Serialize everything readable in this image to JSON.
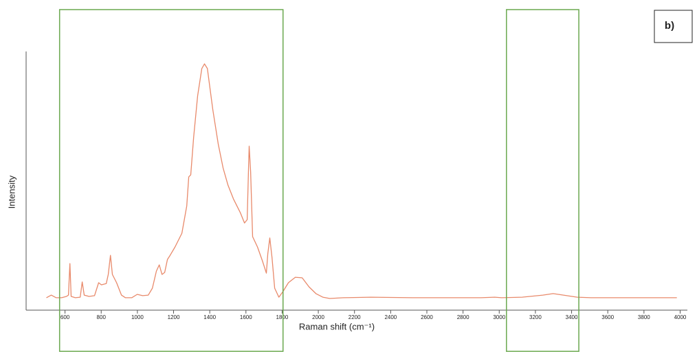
{
  "chart_data": {
    "type": "line",
    "annotation": "b)",
    "xlabel": "Raman shift (cm⁻¹)",
    "ylabel": "Intensity",
    "xlim": [
      385,
      4040
    ],
    "xticks": [
      600,
      800,
      1000,
      1200,
      1400,
      1600,
      1800,
      2000,
      2200,
      2400,
      2600,
      2800,
      3000,
      3200,
      3400,
      3600,
      3800,
      4000
    ],
    "ylim": [
      0,
      100
    ],
    "highlight_ranges": [
      [
        570,
        1805
      ],
      [
        3040,
        3440
      ]
    ],
    "highlight_color": "#6aa84f",
    "series": [
      {
        "color": "#e8896a",
        "x": [
          497,
          524,
          551,
          581,
          608,
          619,
          627,
          634,
          657,
          684,
          695,
          706,
          733,
          763,
          786,
          801,
          828,
          839,
          851,
          862,
          885,
          912,
          934,
          969,
          999,
          1029,
          1060,
          1083,
          1105,
          1121,
          1136,
          1151,
          1166,
          1181,
          1208,
          1246,
          1273,
          1284,
          1295,
          1311,
          1333,
          1356,
          1371,
          1387,
          1417,
          1447,
          1474,
          1501,
          1531,
          1569,
          1592,
          1607,
          1615,
          1618,
          1626,
          1637,
          1664,
          1691,
          1713,
          1721,
          1732,
          1744,
          1759,
          1782,
          1805,
          1835,
          1873,
          1911,
          1949,
          1987,
          2025,
          2063,
          2139,
          2291,
          2519,
          2899,
          2975,
          3013,
          3127,
          3241,
          3298,
          3355,
          3431,
          3507,
          3982
        ],
        "values": [
          4.8,
          5.8,
          4.8,
          4.8,
          5.3,
          5.8,
          18.0,
          5.3,
          4.8,
          5.0,
          10.9,
          5.8,
          5.3,
          5.6,
          10.6,
          9.8,
          10.3,
          13.8,
          21.2,
          13.8,
          10.6,
          5.8,
          4.8,
          4.8,
          6.1,
          5.6,
          5.8,
          8.5,
          15.1,
          17.5,
          13.8,
          14.6,
          19.6,
          21.2,
          24.4,
          29.7,
          40.3,
          51.5,
          52.3,
          66.8,
          82.8,
          93.4,
          95.2,
          93.4,
          77.5,
          64.2,
          54.9,
          48.3,
          43.0,
          37.7,
          33.7,
          35.0,
          56.2,
          63.4,
          53.6,
          28.4,
          24.4,
          19.1,
          14.3,
          21.8,
          27.9,
          20.4,
          8.5,
          5.0,
          7.2,
          10.6,
          12.7,
          12.5,
          9.0,
          6.4,
          5.0,
          4.5,
          4.8,
          5.0,
          4.8,
          4.8,
          5.0,
          4.8,
          5.0,
          5.8,
          6.4,
          5.8,
          5.0,
          4.8,
          4.8
        ]
      }
    ]
  }
}
